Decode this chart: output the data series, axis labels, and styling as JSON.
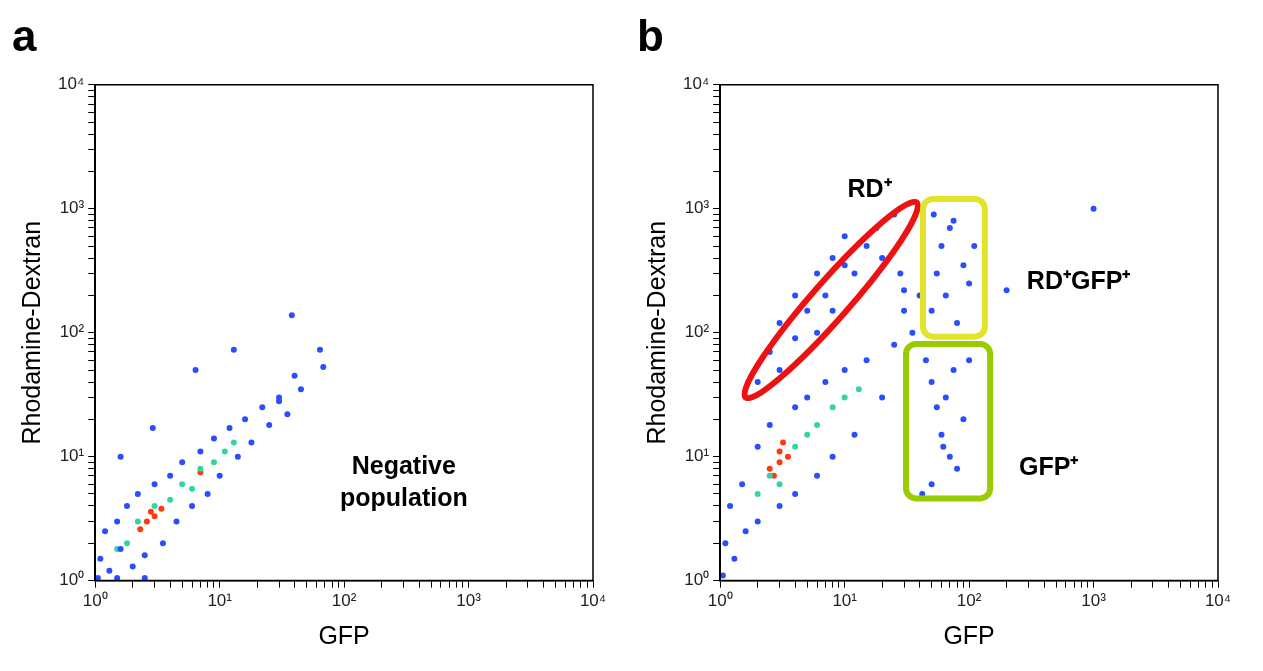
{
  "chart_data": [
    {
      "type": "scatter",
      "title": "a",
      "xlabel": "GFP",
      "ylabel": "Rhodamine-Dextran",
      "log": "xy",
      "marker": "circle",
      "xlim": [
        1,
        10000
      ],
      "ylim": [
        1,
        10000
      ],
      "xticks": [
        {
          "value": 1,
          "label": "10⁰"
        },
        {
          "value": 2,
          "label": null
        },
        {
          "value": 3,
          "label": null
        },
        {
          "value": 4,
          "label": null
        },
        {
          "value": 5,
          "label": null
        },
        {
          "value": 6,
          "label": null
        },
        {
          "value": 7,
          "label": null
        },
        {
          "value": 8,
          "label": null
        },
        {
          "value": 9,
          "label": null
        },
        {
          "value": 10,
          "label": "10¹"
        },
        {
          "value": 20,
          "label": null
        },
        {
          "value": 30,
          "label": null
        },
        {
          "value": 40,
          "label": null
        },
        {
          "value": 50,
          "label": null
        },
        {
          "value": 60,
          "label": null
        },
        {
          "value": 70,
          "label": null
        },
        {
          "value": 80,
          "label": null
        },
        {
          "value": 90,
          "label": null
        },
        {
          "value": 100,
          "label": "10²"
        },
        {
          "value": 200,
          "label": null
        },
        {
          "value": 300,
          "label": null
        },
        {
          "value": 400,
          "label": null
        },
        {
          "value": 500,
          "label": null
        },
        {
          "value": 600,
          "label": null
        },
        {
          "value": 700,
          "label": null
        },
        {
          "value": 800,
          "label": null
        },
        {
          "value": 900,
          "label": null
        },
        {
          "value": 1000,
          "label": "10³"
        },
        {
          "value": 2000,
          "label": null
        },
        {
          "value": 3000,
          "label": null
        },
        {
          "value": 4000,
          "label": null
        },
        {
          "value": 5000,
          "label": null
        },
        {
          "value": 6000,
          "label": null
        },
        {
          "value": 7000,
          "label": null
        },
        {
          "value": 8000,
          "label": null
        },
        {
          "value": 9000,
          "label": null
        },
        {
          "value": 10000,
          "label": "10⁴"
        }
      ],
      "yticks": [
        {
          "value": 1,
          "label": "10⁰"
        },
        {
          "value": 2,
          "label": null
        },
        {
          "value": 3,
          "label": null
        },
        {
          "value": 4,
          "label": null
        },
        {
          "value": 5,
          "label": null
        },
        {
          "value": 6,
          "label": null
        },
        {
          "value": 7,
          "label": null
        },
        {
          "value": 8,
          "label": null
        },
        {
          "value": 9,
          "label": null
        },
        {
          "value": 10,
          "label": "10¹"
        },
        {
          "value": 20,
          "label": null
        },
        {
          "value": 30,
          "label": null
        },
        {
          "value": 40,
          "label": null
        },
        {
          "value": 50,
          "label": null
        },
        {
          "value": 60,
          "label": null
        },
        {
          "value": 70,
          "label": null
        },
        {
          "value": 80,
          "label": null
        },
        {
          "value": 90,
          "label": null
        },
        {
          "value": 100,
          "label": "10²"
        },
        {
          "value": 200,
          "label": null
        },
        {
          "value": 300,
          "label": null
        },
        {
          "value": 400,
          "label": null
        },
        {
          "value": 500,
          "label": null
        },
        {
          "value": 600,
          "label": null
        },
        {
          "value": 700,
          "label": null
        },
        {
          "value": 800,
          "label": null
        },
        {
          "value": 900,
          "label": null
        },
        {
          "value": 1000,
          "label": "10³"
        },
        {
          "value": 2000,
          "label": null
        },
        {
          "value": 3000,
          "label": null
        },
        {
          "value": 4000,
          "label": null
        },
        {
          "value": 5000,
          "label": null
        },
        {
          "value": 6000,
          "label": null
        },
        {
          "value": 7000,
          "label": null
        },
        {
          "value": 8000,
          "label": null
        },
        {
          "value": 9000,
          "label": null
        },
        {
          "value": 10000,
          "label": "10⁴"
        }
      ],
      "series": [
        {
          "color": "#2a4dff",
          "x": [
            1.05,
            1.1,
            1.2,
            1.3,
            1.5,
            1.6,
            1.8,
            2,
            2.2,
            2.5,
            3,
            3.5,
            4,
            4.5,
            5,
            6,
            7,
            8,
            9,
            10,
            12,
            14,
            16,
            18,
            22,
            25,
            30,
            35,
            1.5,
            2.5,
            6.4,
            13,
            38,
            64,
            68,
            40,
            45,
            30,
            2.9,
            1.6
          ],
          "values": [
            1.05,
            1.5,
            2.5,
            1.2,
            3,
            1.8,
            4,
            1.3,
            5,
            1.6,
            6,
            2,
            7,
            3,
            9,
            4,
            11,
            5,
            14,
            7,
            17,
            10,
            20,
            13,
            25,
            18,
            28,
            22,
            1.05,
            1.05,
            50,
            73,
            138,
            73,
            53,
            45,
            35,
            30,
            17,
            10
          ]
        },
        {
          "color": "#33d6a0",
          "x": [
            1.5,
            1.8,
            2.2,
            3,
            4,
            5,
            6,
            7,
            9,
            11,
            13
          ],
          "values": [
            1.8,
            2,
            3,
            4,
            4.5,
            6,
            5.5,
            8,
            9,
            11,
            13
          ]
        },
        {
          "color": "#ff3a10",
          "x": [
            2.3,
            2.6,
            3,
            3.4,
            2.8,
            7
          ],
          "values": [
            2.6,
            3,
            3.3,
            3.8,
            3.6,
            7.5
          ]
        }
      ],
      "annotations": [
        "Negative population"
      ]
    },
    {
      "type": "scatter",
      "title": "b",
      "xlabel": "GFP",
      "ylabel": "Rhodamine-Dextran",
      "log": "xy",
      "marker": "circle",
      "xlim": [
        1,
        10000
      ],
      "ylim": [
        1,
        10000
      ],
      "xticks": [
        {
          "value": 1,
          "label": "10⁰"
        },
        {
          "value": 2,
          "label": null
        },
        {
          "value": 3,
          "label": null
        },
        {
          "value": 4,
          "label": null
        },
        {
          "value": 5,
          "label": null
        },
        {
          "value": 6,
          "label": null
        },
        {
          "value": 7,
          "label": null
        },
        {
          "value": 8,
          "label": null
        },
        {
          "value": 9,
          "label": null
        },
        {
          "value": 10,
          "label": "10¹"
        },
        {
          "value": 20,
          "label": null
        },
        {
          "value": 30,
          "label": null
        },
        {
          "value": 40,
          "label": null
        },
        {
          "value": 50,
          "label": null
        },
        {
          "value": 60,
          "label": null
        },
        {
          "value": 70,
          "label": null
        },
        {
          "value": 80,
          "label": null
        },
        {
          "value": 90,
          "label": null
        },
        {
          "value": 100,
          "label": "10²"
        },
        {
          "value": 200,
          "label": null
        },
        {
          "value": 300,
          "label": null
        },
        {
          "value": 400,
          "label": null
        },
        {
          "value": 500,
          "label": null
        },
        {
          "value": 600,
          "label": null
        },
        {
          "value": 700,
          "label": null
        },
        {
          "value": 800,
          "label": null
        },
        {
          "value": 900,
          "label": null
        },
        {
          "value": 1000,
          "label": "10³"
        },
        {
          "value": 2000,
          "label": null
        },
        {
          "value": 3000,
          "label": null
        },
        {
          "value": 4000,
          "label": null
        },
        {
          "value": 5000,
          "label": null
        },
        {
          "value": 6000,
          "label": null
        },
        {
          "value": 7000,
          "label": null
        },
        {
          "value": 8000,
          "label": null
        },
        {
          "value": 9000,
          "label": null
        },
        {
          "value": 10000,
          "label": "10⁴"
        }
      ],
      "yticks": [
        {
          "value": 1,
          "label": "10⁰"
        },
        {
          "value": 2,
          "label": null
        },
        {
          "value": 3,
          "label": null
        },
        {
          "value": 4,
          "label": null
        },
        {
          "value": 5,
          "label": null
        },
        {
          "value": 6,
          "label": null
        },
        {
          "value": 7,
          "label": null
        },
        {
          "value": 8,
          "label": null
        },
        {
          "value": 9,
          "label": null
        },
        {
          "value": 10,
          "label": "10¹"
        },
        {
          "value": 20,
          "label": null
        },
        {
          "value": 30,
          "label": null
        },
        {
          "value": 40,
          "label": null
        },
        {
          "value": 50,
          "label": null
        },
        {
          "value": 60,
          "label": null
        },
        {
          "value": 70,
          "label": null
        },
        {
          "value": 80,
          "label": null
        },
        {
          "value": 90,
          "label": null
        },
        {
          "value": 100,
          "label": "10²"
        },
        {
          "value": 200,
          "label": null
        },
        {
          "value": 300,
          "label": null
        },
        {
          "value": 400,
          "label": null
        },
        {
          "value": 500,
          "label": null
        },
        {
          "value": 600,
          "label": null
        },
        {
          "value": 700,
          "label": null
        },
        {
          "value": 800,
          "label": null
        },
        {
          "value": 900,
          "label": null
        },
        {
          "value": 1000,
          "label": "10³"
        },
        {
          "value": 2000,
          "label": null
        },
        {
          "value": 3000,
          "label": null
        },
        {
          "value": 4000,
          "label": null
        },
        {
          "value": 5000,
          "label": null
        },
        {
          "value": 6000,
          "label": null
        },
        {
          "value": 7000,
          "label": null
        },
        {
          "value": 8000,
          "label": null
        },
        {
          "value": 9000,
          "label": null
        },
        {
          "value": 10000,
          "label": "10⁴"
        }
      ],
      "series": [
        {
          "color": "#2a4dff",
          "x": [
            1.05,
            1.1,
            1.2,
            1.3,
            1.5,
            1.6,
            2,
            2,
            2.5,
            3,
            4,
            4,
            5,
            6,
            7,
            8,
            10,
            12,
            15,
            20,
            25,
            2,
            2.5,
            3,
            3,
            4,
            4,
            5,
            6,
            7,
            8,
            10,
            10,
            12,
            15,
            18,
            20,
            25,
            30,
            28,
            6,
            8,
            30,
            35,
            40,
            50,
            55,
            60,
            65,
            70,
            75,
            80,
            90,
            100,
            110,
            52,
            45,
            50,
            55,
            60,
            65,
            70,
            75,
            80,
            90,
            100,
            50,
            62,
            42,
            1000,
            200
          ],
          "values": [
            1.1,
            2,
            4,
            1.5,
            6,
            2.5,
            12,
            3,
            18,
            4,
            25,
            5,
            30,
            7,
            40,
            10,
            50,
            15,
            60,
            30,
            80,
            40,
            70,
            50,
            120,
            90,
            200,
            150,
            300,
            200,
            400,
            350,
            600,
            300,
            500,
            700,
            400,
            900,
            220,
            300,
            100,
            150,
            150,
            100,
            200,
            150,
            300,
            500,
            200,
            700,
            800,
            120,
            350,
            250,
            500,
            900,
            60,
            40,
            25,
            15,
            30,
            10,
            50,
            8,
            20,
            60,
            6,
            12,
            5,
            1000,
            220
          ]
        },
        {
          "color": "#33d6a0",
          "x": [
            2,
            2.5,
            3,
            4,
            5,
            6,
            8,
            10,
            13
          ],
          "values": [
            5,
            7,
            6,
            12,
            15,
            18,
            25,
            30,
            35
          ]
        },
        {
          "color": "#ff3a10",
          "x": [
            2.5,
            3,
            3,
            3.5,
            2.7,
            3.2
          ],
          "values": [
            8,
            9,
            11,
            10,
            7,
            13
          ]
        }
      ],
      "annotations": [
        "RD⁺",
        "RD⁺GFP⁺",
        "GFP⁺"
      ]
    }
  ]
}
